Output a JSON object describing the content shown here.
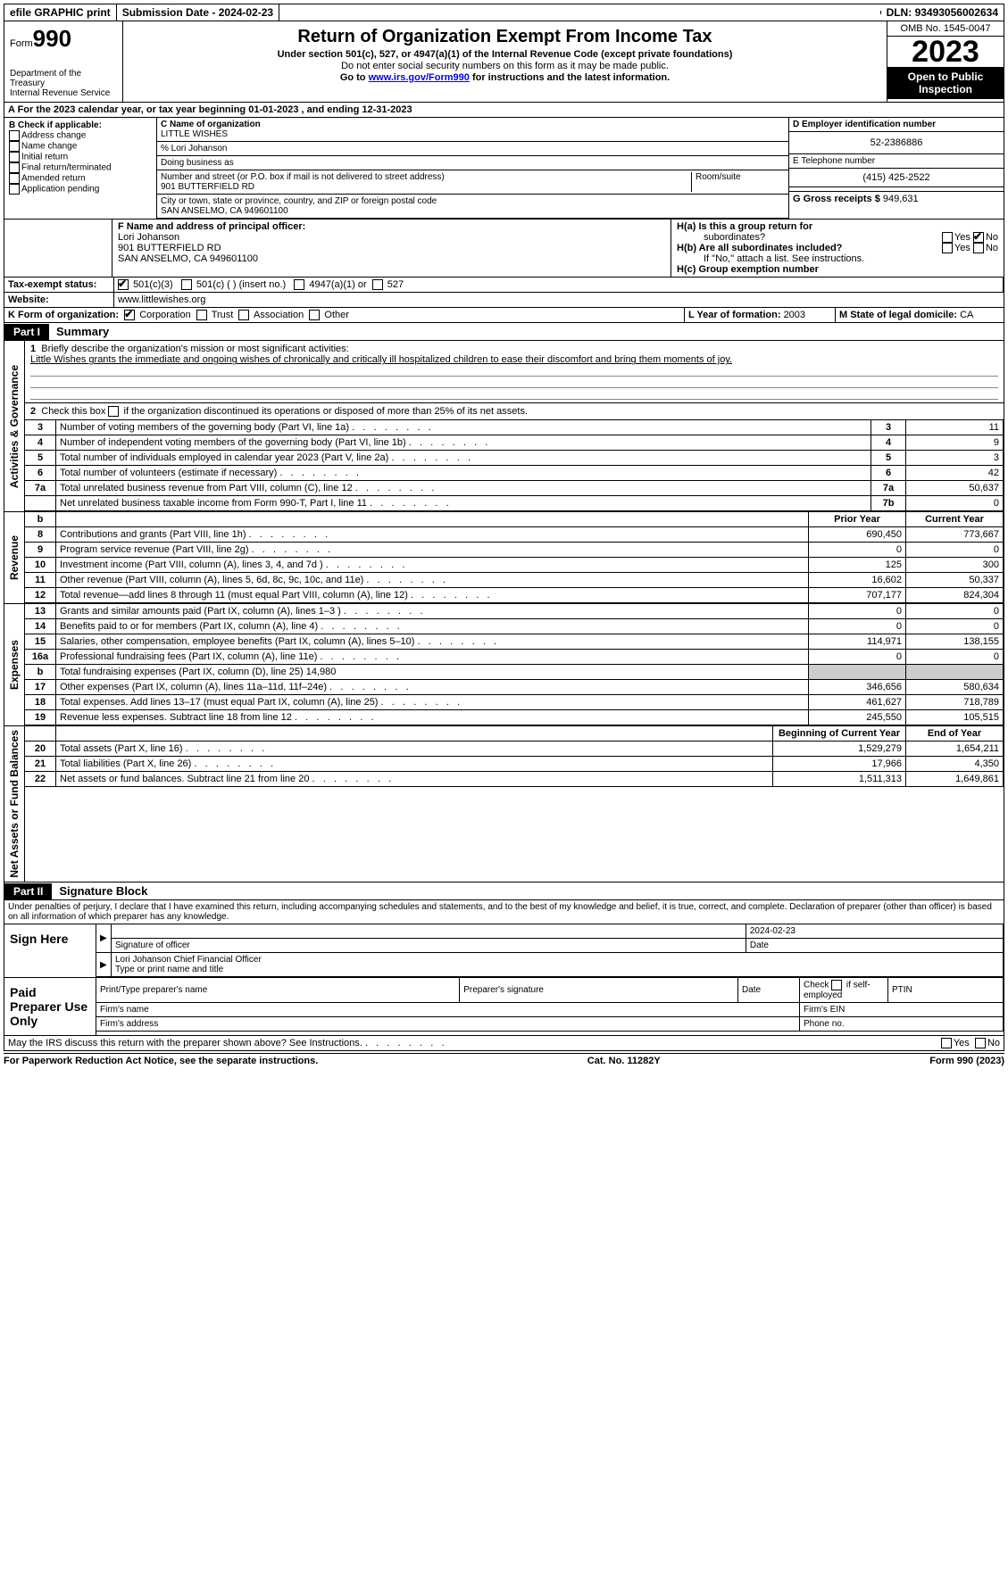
{
  "topbar": {
    "efile": "efile GRAPHIC print",
    "subdate_lbl": "Submission Date - ",
    "subdate": "2024-02-23",
    "dln_lbl": "DLN: ",
    "dln": "93493056002634"
  },
  "header": {
    "form_label": "Form",
    "form_no": "990",
    "dept": "Department of the Treasury",
    "irs": "Internal Revenue Service",
    "title": "Return of Organization Exempt From Income Tax",
    "sub1": "Under section 501(c), 527, or 4947(a)(1) of the Internal Revenue Code (except private foundations)",
    "sub2": "Do not enter social security numbers on this form as it may be made public.",
    "sub3_pre": "Go to ",
    "sub3_link": "www.irs.gov/Form990",
    "sub3_post": " for instructions and the latest information.",
    "omb": "OMB No. 1545-0047",
    "year": "2023",
    "inspect": "Open to Public Inspection"
  },
  "a": {
    "line": "A For the 2023 calendar year, or tax year beginning ",
    "begin": "01-01-2023",
    "mid": " , and ending ",
    "end": "12-31-2023"
  },
  "b": {
    "label": "B Check if applicable:",
    "opts": [
      "Address change",
      "Name change",
      "Initial return",
      "Final return/terminated",
      "Amended return",
      "Application pending"
    ]
  },
  "c": {
    "name_lbl": "C Name of organization",
    "name": "LITTLE WISHES",
    "care": "% Lori Johanson",
    "dba_lbl": "Doing business as",
    "addr_lbl": "Number and street (or P.O. box if mail is not delivered to street address)",
    "addr": "901 BUTTERFIELD RD",
    "room_lbl": "Room/suite",
    "city_lbl": "City or town, state or province, country, and ZIP or foreign postal code",
    "city": "SAN ANSELMO, CA  949601100"
  },
  "d": {
    "ein_lbl": "D Employer identification number",
    "ein": "52-2386886"
  },
  "e": {
    "tel_lbl": "E Telephone number",
    "tel": "(415) 425-2522"
  },
  "g": {
    "lbl": "G Gross receipts $ ",
    "val": "949,631"
  },
  "f": {
    "lbl": "F Name and address of principal officer:",
    "name": "Lori Johanson",
    "addr1": "901 BUTTERFIELD RD",
    "addr2": "SAN ANSELMO, CA  949601100"
  },
  "h": {
    "a": "H(a)  Is this a group return for",
    "a2": "subordinates?",
    "b": "H(b)  Are all subordinates included?",
    "bnote": "If \"No,\" attach a list. See instructions.",
    "c": "H(c)  Group exemption number",
    "yes": "Yes",
    "no": "No"
  },
  "i": {
    "lbl": "Tax-exempt status:",
    "o1": "501(c)(3)",
    "o2": "501(c) (  ) (insert no.)",
    "o3": "4947(a)(1) or",
    "o4": "527"
  },
  "j": {
    "lbl": "Website:",
    "val": "www.littlewishes.org"
  },
  "k": {
    "lbl": "K Form of organization:",
    "o1": "Corporation",
    "o2": "Trust",
    "o3": "Association",
    "o4": "Other"
  },
  "l": {
    "lbl": "L Year of formation: ",
    "val": "2003"
  },
  "m": {
    "lbl": "M State of legal domicile: ",
    "val": "CA"
  },
  "part1": {
    "label": "Part I",
    "title": "Summary"
  },
  "summary": {
    "line1_lbl": "Briefly describe the organization's mission or most significant activities:",
    "line1_txt": "Little Wishes grants the immediate and ongoing wishes of chronically and critically ill hospitalized children to ease their discomfort and bring them moments of joy.",
    "line2": "Check this box        if the organization discontinued its operations or disposed of more than 25% of its net assets.",
    "rows_gov": [
      {
        "n": "3",
        "d": "Number of voting members of the governing body (Part VI, line 1a)",
        "box": "3",
        "v": "11"
      },
      {
        "n": "4",
        "d": "Number of independent voting members of the governing body (Part VI, line 1b)",
        "box": "4",
        "v": "9"
      },
      {
        "n": "5",
        "d": "Total number of individuals employed in calendar year 2023 (Part V, line 2a)",
        "box": "5",
        "v": "3"
      },
      {
        "n": "6",
        "d": "Total number of volunteers (estimate if necessary)",
        "box": "6",
        "v": "42"
      },
      {
        "n": "7a",
        "d": "Total unrelated business revenue from Part VIII, column (C), line 12",
        "box": "7a",
        "v": "50,637"
      },
      {
        "n": "",
        "d": "Net unrelated business taxable income from Form 990-T, Part I, line 11",
        "box": "7b",
        "v": "0"
      }
    ],
    "hdr_prior": "Prior Year",
    "hdr_curr": "Current Year",
    "rev": [
      {
        "n": "8",
        "d": "Contributions and grants (Part VIII, line 1h)",
        "p": "690,450",
        "c": "773,667"
      },
      {
        "n": "9",
        "d": "Program service revenue (Part VIII, line 2g)",
        "p": "0",
        "c": "0"
      },
      {
        "n": "10",
        "d": "Investment income (Part VIII, column (A), lines 3, 4, and 7d )",
        "p": "125",
        "c": "300"
      },
      {
        "n": "11",
        "d": "Other revenue (Part VIII, column (A), lines 5, 6d, 8c, 9c, 10c, and 11e)",
        "p": "16,602",
        "c": "50,337"
      },
      {
        "n": "12",
        "d": "Total revenue—add lines 8 through 11 (must equal Part VIII, column (A), line 12)",
        "p": "707,177",
        "c": "824,304"
      }
    ],
    "exp": [
      {
        "n": "13",
        "d": "Grants and similar amounts paid (Part IX, column (A), lines 1–3 )",
        "p": "0",
        "c": "0"
      },
      {
        "n": "14",
        "d": "Benefits paid to or for members (Part IX, column (A), line 4)",
        "p": "0",
        "c": "0"
      },
      {
        "n": "15",
        "d": "Salaries, other compensation, employee benefits (Part IX, column (A), lines 5–10)",
        "p": "114,971",
        "c": "138,155"
      },
      {
        "n": "16a",
        "d": "Professional fundraising fees (Part IX, column (A), line 11e)",
        "p": "0",
        "c": "0"
      },
      {
        "n": "b",
        "d": "Total fundraising expenses (Part IX, column (D), line 25) 14,980",
        "p": "",
        "c": "",
        "shade": true
      },
      {
        "n": "17",
        "d": "Other expenses (Part IX, column (A), lines 11a–11d, 11f–24e)",
        "p": "346,656",
        "c": "580,634"
      },
      {
        "n": "18",
        "d": "Total expenses. Add lines 13–17 (must equal Part IX, column (A), line 25)",
        "p": "461,627",
        "c": "718,789"
      },
      {
        "n": "19",
        "d": "Revenue less expenses. Subtract line 18 from line 12",
        "p": "245,550",
        "c": "105,515"
      }
    ],
    "hdr_begin": "Beginning of Current Year",
    "hdr_end": "End of Year",
    "net": [
      {
        "n": "20",
        "d": "Total assets (Part X, line 16)",
        "p": "1,529,279",
        "c": "1,654,211"
      },
      {
        "n": "21",
        "d": "Total liabilities (Part X, line 26)",
        "p": "17,966",
        "c": "4,350"
      },
      {
        "n": "22",
        "d": "Net assets or fund balances. Subtract line 21 from line 20",
        "p": "1,511,313",
        "c": "1,649,861"
      }
    ],
    "side_gov": "Activities & Governance",
    "side_rev": "Revenue",
    "side_exp": "Expenses",
    "side_net": "Net Assets or Fund Balances"
  },
  "part2": {
    "label": "Part II",
    "title": "Signature Block",
    "text": "Under penalties of perjury, I declare that I have examined this return, including accompanying schedules and statements, and to the best of my knowledge and belief, it is true, correct, and complete. Declaration of preparer (other than officer) is based on all information of which preparer has any knowledge."
  },
  "sign": {
    "lbl": "Sign Here",
    "sig": "Signature of officer",
    "date": "2024-02-23",
    "name": "Lori Johanson  Chief Financial Officer",
    "name_lbl": "Type or print name and title",
    "date_lbl": "Date"
  },
  "paid": {
    "lbl": "Paid Preparer Use Only",
    "h1": "Print/Type preparer's name",
    "h2": "Preparer's signature",
    "h3": "Date",
    "h4_pre": "Check",
    "h4_post": "if self-employed",
    "h5": "PTIN",
    "f1": "Firm's name",
    "f2": "Firm's EIN",
    "f3": "Firm's address",
    "f4": "Phone no."
  },
  "discuss": {
    "txt": "May the IRS discuss this return with the preparer shown above? See Instructions.",
    "yes": "Yes",
    "no": "No"
  },
  "footer": {
    "l": "For Paperwork Reduction Act Notice, see the separate instructions.",
    "c": "Cat. No. 11282Y",
    "r": "Form 990 (2023)"
  }
}
